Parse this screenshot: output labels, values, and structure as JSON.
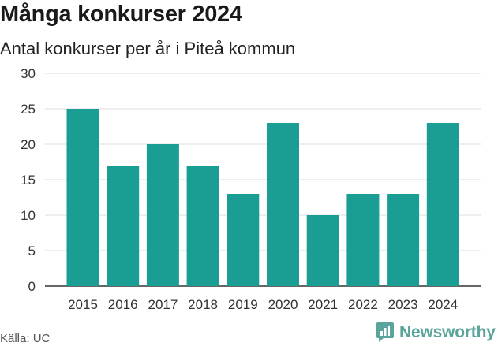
{
  "title": "Många konkurser 2024",
  "subtitle": "Antal konkurser per år i Piteå kommun",
  "source": "Källa: UC",
  "brand": "Newsworthy",
  "colors": {
    "bar": "#1a9e94",
    "grid": "#dddddd",
    "axis": "#333333",
    "brand": "#5aa49b"
  },
  "chart_data": {
    "type": "bar",
    "title": "Många konkurser 2024",
    "subtitle": "Antal konkurser per år i Piteå kommun",
    "xlabel": "",
    "ylabel": "",
    "categories": [
      "2015",
      "2016",
      "2017",
      "2018",
      "2019",
      "2020",
      "2021",
      "2022",
      "2023",
      "2024"
    ],
    "values": [
      25,
      17,
      20,
      17,
      13,
      23,
      10,
      13,
      13,
      23
    ],
    "ylim": [
      0,
      30
    ],
    "yticks": [
      0,
      5,
      10,
      15,
      20,
      25,
      30
    ],
    "grid": true,
    "legend": "none"
  }
}
